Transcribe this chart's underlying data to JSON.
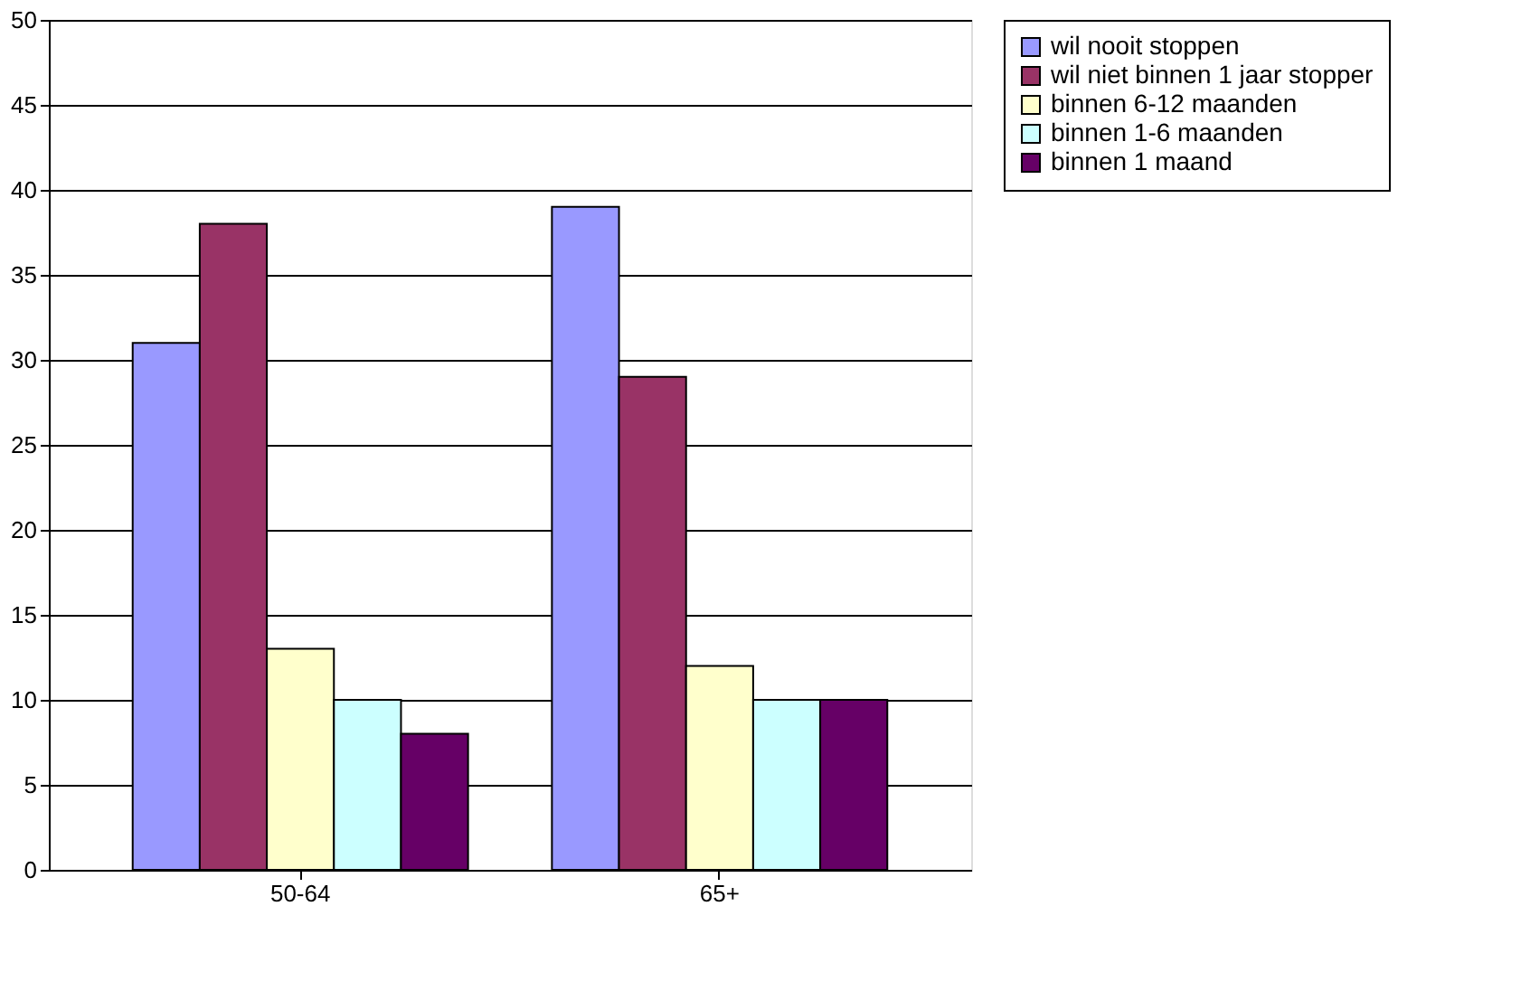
{
  "chart_data": {
    "type": "bar",
    "categories": [
      "50-64",
      "65+"
    ],
    "series": [
      {
        "name": "wil nooit stoppen",
        "color": "#9999ff",
        "values": [
          31,
          39
        ]
      },
      {
        "name": "wil niet binnen 1 jaar stopper",
        "color": "#993366",
        "values": [
          38,
          29
        ]
      },
      {
        "name": "binnen 6-12 maanden",
        "color": "#ffffcc",
        "values": [
          13,
          12
        ]
      },
      {
        "name": "binnen 1-6 maanden",
        "color": "#ccffff",
        "values": [
          10,
          10
        ]
      },
      {
        "name": "binnen 1 maand",
        "color": "#660066",
        "values": [
          8,
          10
        ]
      }
    ],
    "ylim": [
      0,
      50
    ],
    "yticks": [
      0,
      5,
      10,
      15,
      20,
      25,
      30,
      35,
      40,
      45,
      50
    ],
    "grid": "y",
    "legend": "right"
  }
}
